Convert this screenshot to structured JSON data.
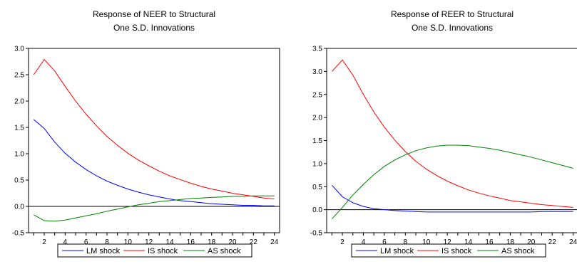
{
  "chart_data": [
    {
      "type": "line",
      "title_lines": [
        "Response of NEER to Structural",
        "One S.D. Innovations"
      ],
      "xlabel": "",
      "ylabel": "",
      "x": [
        1,
        2,
        3,
        4,
        5,
        6,
        7,
        8,
        9,
        10,
        11,
        12,
        13,
        14,
        15,
        16,
        17,
        18,
        19,
        20,
        21,
        22,
        23,
        24
      ],
      "xlim": [
        0.5,
        24.5
      ],
      "ylim": [
        -0.5,
        3.0
      ],
      "x_ticks": [
        2,
        4,
        6,
        8,
        10,
        12,
        14,
        16,
        18,
        20,
        22,
        24
      ],
      "y_ticks": [
        -0.5,
        0.0,
        0.5,
        1.0,
        1.5,
        2.0,
        2.5,
        3.0
      ],
      "y_tick_labels": [
        "-0.5",
        "0.0",
        "0.5",
        "1.0",
        "1.5",
        "2.0",
        "2.5",
        "3.0"
      ],
      "zero_line": true,
      "legend_position": "bottom",
      "series": [
        {
          "name": "LM shock",
          "color": "#0000ff",
          "values": [
            1.65,
            1.48,
            1.22,
            1.01,
            0.84,
            0.7,
            0.58,
            0.48,
            0.4,
            0.33,
            0.27,
            0.22,
            0.18,
            0.14,
            0.11,
            0.09,
            0.07,
            0.05,
            0.04,
            0.03,
            0.02,
            0.02,
            0.01,
            0.01
          ]
        },
        {
          "name": "IS shock",
          "color": "#ff0000",
          "values": [
            2.5,
            2.79,
            2.57,
            2.28,
            2.0,
            1.75,
            1.53,
            1.33,
            1.16,
            1.01,
            0.88,
            0.77,
            0.67,
            0.58,
            0.51,
            0.44,
            0.38,
            0.33,
            0.29,
            0.25,
            0.22,
            0.19,
            0.16,
            0.14
          ]
        },
        {
          "name": "AS shock",
          "color": "#008000",
          "values": [
            -0.16,
            -0.27,
            -0.28,
            -0.26,
            -0.22,
            -0.18,
            -0.14,
            -0.09,
            -0.05,
            -0.01,
            0.03,
            0.06,
            0.09,
            0.11,
            0.13,
            0.15,
            0.16,
            0.17,
            0.18,
            0.19,
            0.19,
            0.2,
            0.2,
            0.2
          ]
        }
      ]
    },
    {
      "type": "line",
      "title_lines": [
        "Response of REER to Structural",
        "One S.D. Innovations"
      ],
      "xlabel": "",
      "ylabel": "",
      "x": [
        1,
        2,
        3,
        4,
        5,
        6,
        7,
        8,
        9,
        10,
        11,
        12,
        13,
        14,
        15,
        16,
        17,
        18,
        19,
        20,
        21,
        22,
        23,
        24
      ],
      "xlim": [
        0.5,
        24.5
      ],
      "ylim": [
        -0.5,
        3.5
      ],
      "x_ticks": [
        2,
        4,
        6,
        8,
        10,
        12,
        14,
        16,
        18,
        20,
        22,
        24
      ],
      "y_ticks": [
        -0.5,
        0.0,
        0.5,
        1.0,
        1.5,
        2.0,
        2.5,
        3.0,
        3.5
      ],
      "y_tick_labels": [
        "-0.5",
        "0.0",
        "0.5",
        "1.0",
        "1.5",
        "2.0",
        "2.5",
        "3.0",
        "3.5"
      ],
      "zero_line": true,
      "legend_position": "bottom",
      "series": [
        {
          "name": "LM shock",
          "color": "#0000ff",
          "values": [
            0.53,
            0.28,
            0.15,
            0.07,
            0.02,
            0.0,
            -0.02,
            -0.03,
            -0.04,
            -0.05,
            -0.05,
            -0.05,
            -0.05,
            -0.05,
            -0.05,
            -0.05,
            -0.05,
            -0.05,
            -0.05,
            -0.05,
            -0.04,
            -0.04,
            -0.04,
            -0.04
          ]
        },
        {
          "name": "IS shock",
          "color": "#ff0000",
          "values": [
            3.0,
            3.25,
            2.92,
            2.5,
            2.12,
            1.79,
            1.51,
            1.26,
            1.05,
            0.88,
            0.74,
            0.62,
            0.52,
            0.43,
            0.36,
            0.3,
            0.25,
            0.2,
            0.17,
            0.14,
            0.11,
            0.09,
            0.07,
            0.05
          ]
        },
        {
          "name": "AS shock",
          "color": "#008000",
          "values": [
            -0.2,
            0.05,
            0.32,
            0.55,
            0.76,
            0.94,
            1.08,
            1.19,
            1.28,
            1.34,
            1.38,
            1.4,
            1.4,
            1.39,
            1.36,
            1.33,
            1.29,
            1.24,
            1.19,
            1.14,
            1.08,
            1.02,
            0.96,
            0.9
          ]
        }
      ]
    }
  ]
}
